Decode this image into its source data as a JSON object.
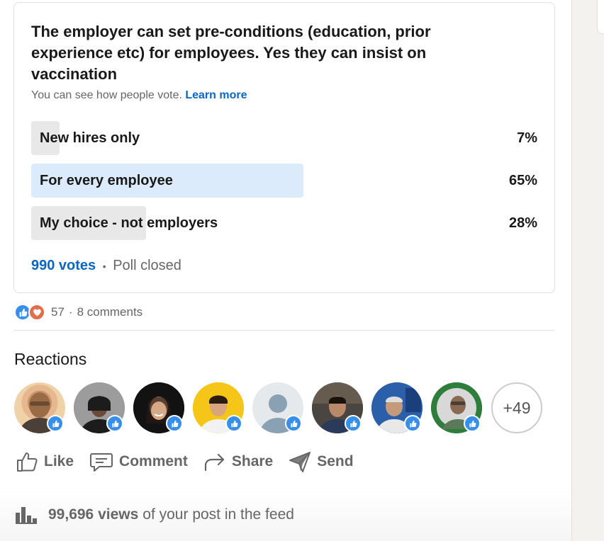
{
  "poll": {
    "question": "The employer can set pre-conditions (education, prior experience etc) for employees. Yes they can insist on vaccination",
    "visibility_note": "You can see how people vote.",
    "learn_more": "Learn more",
    "options": [
      {
        "label": "New hires only",
        "percent_text": "7%",
        "percent": 7,
        "highlighted": false
      },
      {
        "label": "For every employee",
        "percent_text": "65%",
        "percent": 65,
        "highlighted": true
      },
      {
        "label": "My choice - not employers",
        "percent_text": "28%",
        "percent": 28,
        "highlighted": false
      }
    ],
    "votes": "990 votes",
    "separator": "•",
    "status": "Poll closed"
  },
  "social": {
    "reaction_count": "57",
    "separator": "·",
    "comments": "8 comments"
  },
  "reactions": {
    "title": "Reactions",
    "more": "+49"
  },
  "actions": {
    "like": "Like",
    "comment": "Comment",
    "share": "Share",
    "send": "Send"
  },
  "views": {
    "count": "99,696 views",
    "suffix": "of your post in the feed"
  },
  "colors": {
    "brand_blue": "#0a66c2",
    "bar_highlight": "#dcebfb",
    "bar_default": "#e8e8e8",
    "like_blue": "#378fe9",
    "love_red": "#df704d"
  }
}
